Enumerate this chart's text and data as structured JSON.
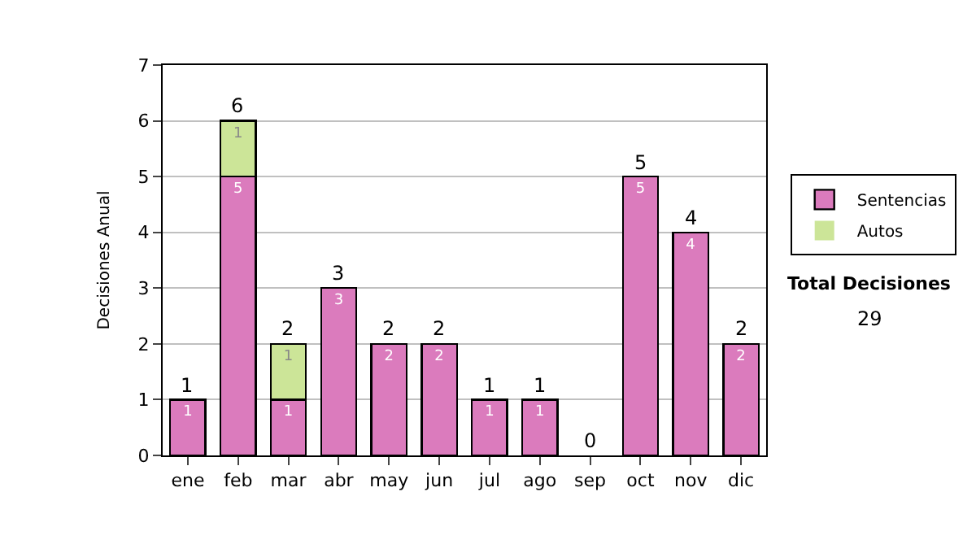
{
  "chart_data": {
    "type": "bar",
    "stacked": true,
    "ylabel": "Decisiones Anual",
    "categories": [
      "ene",
      "feb",
      "mar",
      "abr",
      "may",
      "jun",
      "jul",
      "ago",
      "sep",
      "oct",
      "nov",
      "dic"
    ],
    "series": [
      {
        "name": "Sentencias",
        "color": "#db7bbd",
        "values": [
          1,
          5,
          1,
          3,
          2,
          2,
          1,
          1,
          0,
          5,
          4,
          2
        ],
        "value_labels": [
          "1",
          "5",
          "1",
          "3",
          "2",
          "2",
          "1",
          "1",
          null,
          "5",
          "4",
          "2"
        ]
      },
      {
        "name": "Autos",
        "color": "#cce598",
        "values": [
          0,
          1,
          1,
          0,
          0,
          0,
          0,
          0,
          0,
          0,
          0,
          0
        ],
        "value_labels": [
          null,
          "1",
          "1",
          null,
          null,
          null,
          null,
          null,
          null,
          null,
          null,
          null
        ]
      }
    ],
    "totals": [
      "1",
      "6",
      "2",
      "3",
      "2",
      "2",
      "1",
      "1",
      "0",
      "5",
      "4",
      "2"
    ],
    "ylim": [
      0,
      7
    ],
    "yticks": [
      0,
      1,
      2,
      3,
      4,
      5,
      6,
      7
    ],
    "grid": "y",
    "legend": "right",
    "annotations": [
      "Total Decisiones",
      "29"
    ]
  }
}
